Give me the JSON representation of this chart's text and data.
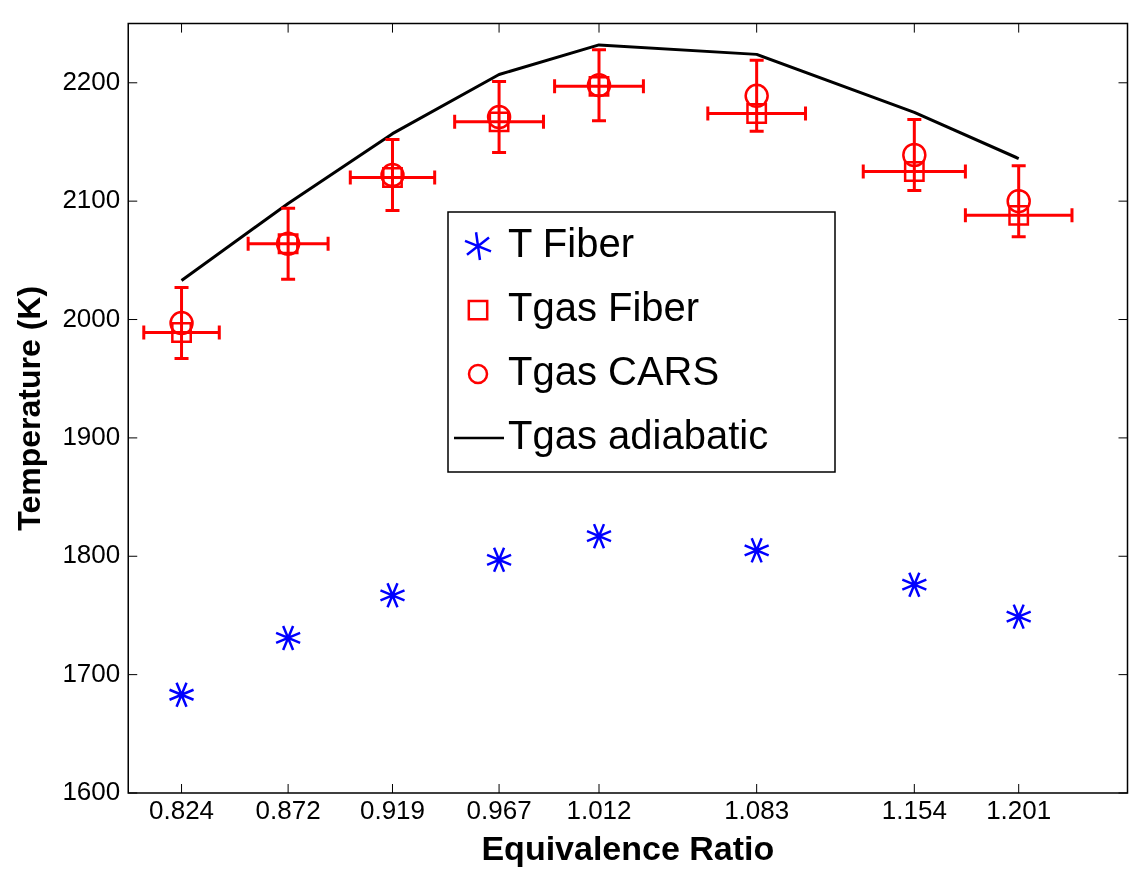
{
  "chart_data": {
    "type": "scatter",
    "xlabel": "Equivalence Ratio",
    "ylabel": "Temperature (K)",
    "xlim": [
      0.8,
      1.25
    ],
    "xticks": [
      0.824,
      0.872,
      0.919,
      0.967,
      1.012,
      1.083,
      1.154,
      1.201
    ],
    "ylim": [
      1600,
      2250
    ],
    "yticks": [
      1600,
      1700,
      1800,
      1900,
      2000,
      2100,
      2200
    ],
    "grid": false,
    "legend": "center",
    "x": [
      0.824,
      0.872,
      0.919,
      0.967,
      1.012,
      1.083,
      1.154,
      1.201
    ],
    "series": [
      {
        "name": "T Fiber",
        "color": "#0000ff",
        "marker": "cross",
        "values": [
          1683,
          1731,
          1767,
          1797,
          1817,
          1805,
          1776,
          1749
        ]
      },
      {
        "name": "Tgas Fiber",
        "color": "#ff0000",
        "marker": "square",
        "values": [
          1989,
          2064,
          2120,
          2167,
          2197,
          2174,
          2125,
          2088
        ],
        "xerrors": [
          0.017,
          0.018,
          0.019,
          0.02,
          0.02,
          0.022,
          0.023,
          0.024
        ]
      },
      {
        "name": "Tgas CARS",
        "color": "#ff0000",
        "marker": "circle",
        "values": [
          1997,
          2064,
          2122,
          2171,
          2198,
          2189,
          2139,
          2100
        ],
        "errors": [
          30,
          30,
          30,
          30,
          30,
          30,
          30,
          30
        ]
      },
      {
        "name": "Tgas adiabatic",
        "type": "line",
        "color": "#000000",
        "marker": "none",
        "values": [
          2033,
          2098,
          2157,
          2207,
          2232,
          2224,
          2175,
          2136
        ]
      }
    ]
  }
}
